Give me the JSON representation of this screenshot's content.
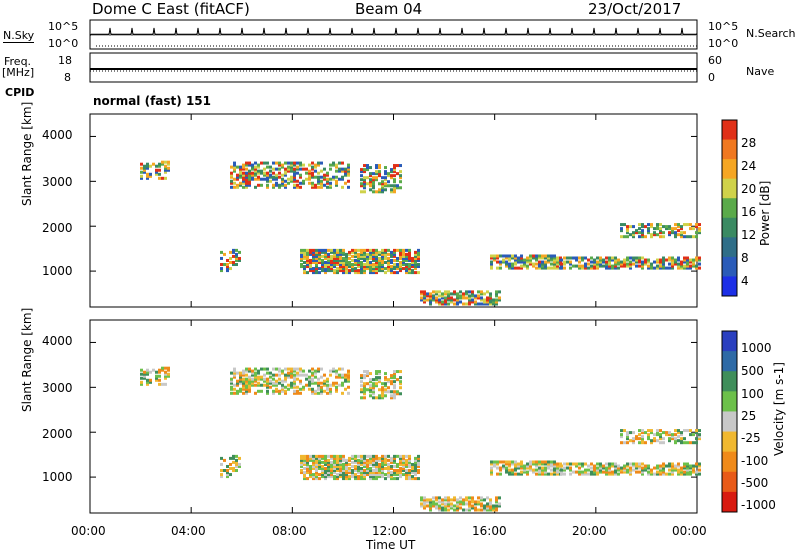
{
  "header": {
    "station": "Dome C East (fitACF)",
    "beam": "Beam 04",
    "date": "23/Oct/2017"
  },
  "strips": {
    "nsky_label": "N.Sky",
    "nsky_ticks": [
      "10^5",
      "10^0"
    ],
    "nsearch_label": "N.Search",
    "nsearch_ticks": [
      "10^5",
      "10^0"
    ],
    "freq_label": "Freq.",
    "freq_unit": "[MHz]",
    "freq_ticks": [
      "18",
      "8"
    ],
    "nave_label": "Nave",
    "nave_ticks": [
      "60",
      "0"
    ],
    "cpid_label": "CPID",
    "cpid_value": "normal (fast) 151"
  },
  "chart_data": [
    {
      "type": "heatmap",
      "name": "Power",
      "ylabel": "Slant Range [km]",
      "ylim": [
        200,
        4500
      ],
      "yticks": [
        "4000",
        "3000",
        "2000",
        "1000"
      ],
      "colorbar_label": "Power [dB]",
      "colorbar_ticks": [
        "28",
        "24",
        "20",
        "16",
        "12",
        "8",
        "4"
      ],
      "colorbar_colors": [
        "#1c2fe6",
        "#2a5bb8",
        "#2f6e88",
        "#3a8a62",
        "#5aaa4a",
        "#cfd24a",
        "#f5a623",
        "#f07820",
        "#e03018"
      ]
    },
    {
      "type": "heatmap",
      "name": "Velocity",
      "ylabel": "Slant Range [km]",
      "ylim": [
        200,
        4500
      ],
      "yticks": [
        "4000",
        "3000",
        "2000",
        "1000"
      ],
      "colorbar_label": "Velocity [m s-1]",
      "colorbar_ticks": [
        "1000",
        "500",
        "100",
        "25",
        "-25",
        "-100",
        "-500",
        "-1000"
      ],
      "colorbar_colors": [
        "#2a3fbf",
        "#2e6aa6",
        "#3f8e5a",
        "#6cc04a",
        "#c8c8c8",
        "#f0b830",
        "#ef8a1a",
        "#e85a18",
        "#d81a10"
      ]
    }
  ],
  "xaxis": {
    "ticks": [
      "00:00",
      "04:00",
      "08:00",
      "12:00",
      "16:00",
      "20:00",
      "00:00"
    ],
    "label": "Time UT"
  }
}
